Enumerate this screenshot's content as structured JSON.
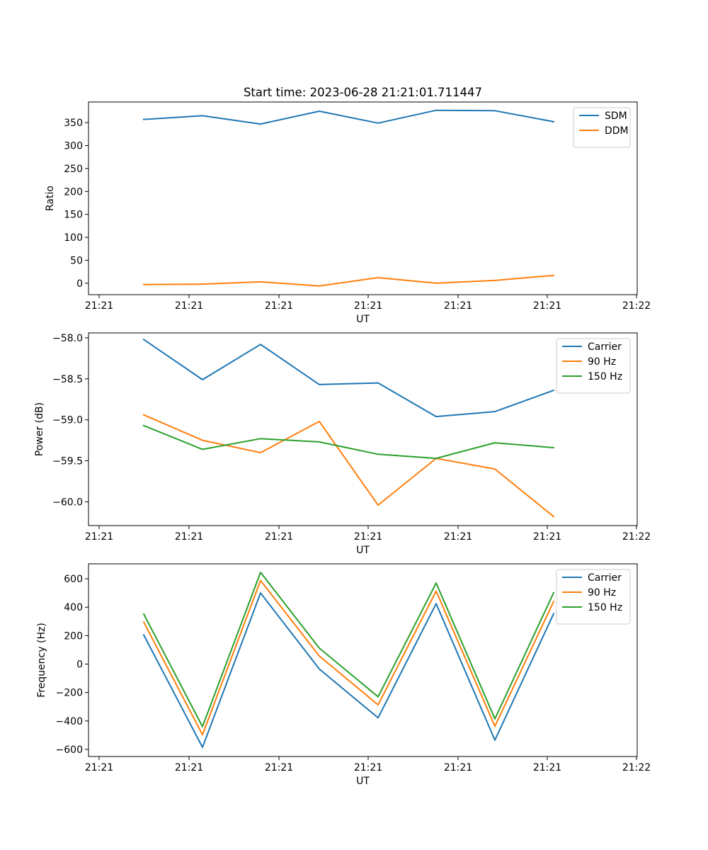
{
  "figure": {
    "title": "Start time: 2023-06-28 21:21:01.711447"
  },
  "chart_data": [
    {
      "type": "line",
      "xlabel": "UT",
      "ylabel": "Ratio",
      "x_tick_labels": [
        "21:21",
        "21:21",
        "21:21",
        "21:21",
        "21:21",
        "21:21",
        "21:21"
      ],
      "x_last_tick_label": "21:22",
      "y_ticks": [
        0,
        50,
        100,
        150,
        200,
        250,
        300,
        350
      ],
      "y_tick_labels": [
        "0",
        "50",
        "100",
        "150",
        "200",
        "250",
        "300",
        "350"
      ],
      "ylim": [
        -25,
        395
      ],
      "legend_position": "upper right",
      "series": [
        {
          "name": "SDM",
          "color": "#1f77b4",
          "values": [
            357,
            365,
            347,
            375,
            349,
            377,
            376,
            352
          ]
        },
        {
          "name": "DDM",
          "color": "#ff7f0e",
          "values": [
            -3,
            -2,
            3,
            -6,
            12,
            0,
            6,
            17
          ]
        }
      ]
    },
    {
      "type": "line",
      "xlabel": "UT",
      "ylabel": "Power (dB)",
      "x_tick_labels": [
        "21:21",
        "21:21",
        "21:21",
        "21:21",
        "21:21",
        "21:21",
        "21:21"
      ],
      "x_last_tick_label": "21:22",
      "y_ticks": [
        -58.0,
        -58.5,
        -59.0,
        -59.5,
        -60.0
      ],
      "y_tick_labels": [
        "−58.0",
        "−58.5",
        "−59.0",
        "−59.5",
        "−60.0"
      ],
      "ylim": [
        -60.29,
        -57.94
      ],
      "legend_position": "upper right",
      "series": [
        {
          "name": "Carrier",
          "color": "#1f77b4",
          "values": [
            -58.02,
            -58.51,
            -58.08,
            -58.57,
            -58.55,
            -58.96,
            -58.9,
            -58.64
          ]
        },
        {
          "name": "90 Hz",
          "color": "#ff7f0e",
          "values": [
            -58.94,
            -59.25,
            -59.4,
            -59.02,
            -60.04,
            -59.47,
            -59.6,
            -60.18
          ]
        },
        {
          "name": "150 Hz",
          "color": "#2ca02c",
          "values": [
            -59.07,
            -59.36,
            -59.23,
            -59.27,
            -59.42,
            -59.47,
            -59.28,
            -59.34
          ]
        }
      ]
    },
    {
      "type": "line",
      "xlabel": "UT",
      "ylabel": "Frequency (Hz)",
      "x_tick_labels": [
        "21:21",
        "21:21",
        "21:21",
        "21:21",
        "21:21",
        "21:21",
        "21:21"
      ],
      "x_last_tick_label": "21:22",
      "y_ticks": [
        -600,
        -400,
        -200,
        0,
        200,
        400,
        600
      ],
      "y_tick_labels": [
        "−600",
        "−400",
        "−200",
        "0",
        "200",
        "400",
        "600"
      ],
      "ylim": [
        -650,
        705
      ],
      "legend_position": "upper right",
      "series": [
        {
          "name": "Carrier",
          "color": "#1f77b4",
          "values": [
            205,
            -585,
            500,
            -35,
            -378,
            425,
            -535,
            355
          ]
        },
        {
          "name": "90 Hz",
          "color": "#ff7f0e",
          "values": [
            295,
            -497,
            588,
            57,
            -287,
            513,
            -438,
            440
          ]
        },
        {
          "name": "150 Hz",
          "color": "#2ca02c",
          "values": [
            352,
            -440,
            645,
            112,
            -230,
            570,
            -385,
            502
          ]
        }
      ]
    }
  ]
}
